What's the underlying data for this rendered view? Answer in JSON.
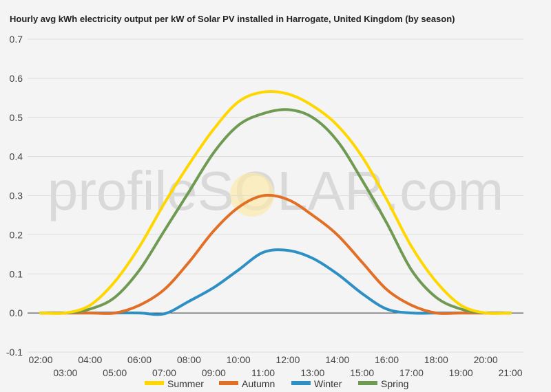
{
  "chart_data": {
    "type": "line",
    "title": "Hourly avg kWh electricity output per kW of Solar PV installed in Harrogate, United Kingdom (by season)",
    "xlabel": "",
    "ylabel": "",
    "ylim": [
      -0.1,
      0.7
    ],
    "yticks": [
      "-0.1",
      "0.0",
      "0.1",
      "0.2",
      "0.3",
      "0.4",
      "0.5",
      "0.6",
      "0.7"
    ],
    "categories": [
      "02:00",
      "03:00",
      "04:00",
      "05:00",
      "06:00",
      "07:00",
      "08:00",
      "09:00",
      "10:00",
      "11:00",
      "12:00",
      "13:00",
      "14:00",
      "15:00",
      "16:00",
      "17:00",
      "18:00",
      "19:00",
      "20:00",
      "21:00"
    ],
    "grid": true,
    "legend_position": "bottom",
    "watermark": "profileSOLAR.com",
    "series": [
      {
        "name": "Summer",
        "color": "#FFD700",
        "values": [
          0.0,
          0.0,
          0.02,
          0.08,
          0.17,
          0.28,
          0.38,
          0.47,
          0.54,
          0.565,
          0.56,
          0.53,
          0.48,
          0.4,
          0.29,
          0.17,
          0.08,
          0.02,
          0.0,
          0.0
        ]
      },
      {
        "name": "Autumn",
        "color": "#E26F26",
        "values": [
          0.0,
          0.0,
          0.0,
          0.0,
          0.02,
          0.06,
          0.13,
          0.21,
          0.27,
          0.3,
          0.29,
          0.25,
          0.2,
          0.13,
          0.06,
          0.02,
          0.0,
          0.0,
          0.0,
          0.0
        ]
      },
      {
        "name": "Winter",
        "color": "#2E8FC4",
        "values": [
          0.0,
          0.0,
          0.0,
          0.0,
          0.0,
          -0.002,
          0.03,
          0.065,
          0.11,
          0.155,
          0.16,
          0.14,
          0.1,
          0.05,
          0.01,
          0.0,
          0.0,
          0.0,
          0.0,
          0.0
        ]
      },
      {
        "name": "Spring",
        "color": "#6E9A52",
        "values": [
          0.0,
          0.0,
          0.01,
          0.04,
          0.11,
          0.21,
          0.31,
          0.41,
          0.48,
          0.51,
          0.52,
          0.5,
          0.44,
          0.34,
          0.23,
          0.11,
          0.04,
          0.01,
          0.0,
          0.0
        ]
      }
    ]
  }
}
